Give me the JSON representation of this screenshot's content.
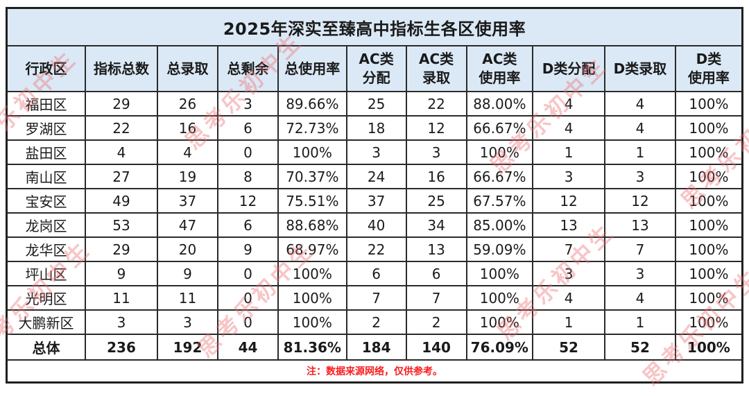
{
  "chart_data": {
    "type": "table",
    "title": "2025年深实至臻高中指标生各区使用率",
    "columns": [
      "行政区",
      "指标总数",
      "总录取",
      "总剩余",
      "总使用率",
      "AC类\n分配",
      "AC类\n录取",
      "AC类\n使用率",
      "D类分配",
      "D类录取",
      "D类\n使用率"
    ],
    "rows": [
      [
        "福田区",
        "29",
        "26",
        "3",
        "89.66%",
        "25",
        "22",
        "88.00%",
        "4",
        "4",
        "100%"
      ],
      [
        "罗湖区",
        "22",
        "16",
        "6",
        "72.73%",
        "18",
        "12",
        "66.67%",
        "4",
        "4",
        "100%"
      ],
      [
        "盐田区",
        "4",
        "4",
        "0",
        "100%",
        "3",
        "3",
        "100%",
        "1",
        "1",
        "100%"
      ],
      [
        "南山区",
        "27",
        "19",
        "8",
        "70.37%",
        "24",
        "16",
        "66.67%",
        "3",
        "3",
        "100%"
      ],
      [
        "宝安区",
        "49",
        "37",
        "12",
        "75.51%",
        "37",
        "25",
        "67.57%",
        "12",
        "12",
        "100%"
      ],
      [
        "龙岗区",
        "53",
        "47",
        "6",
        "88.68%",
        "40",
        "34",
        "85.00%",
        "13",
        "13",
        "100%"
      ],
      [
        "龙华区",
        "29",
        "20",
        "9",
        "68.97%",
        "22",
        "13",
        "59.09%",
        "7",
        "7",
        "100%"
      ],
      [
        "坪山区",
        "9",
        "9",
        "0",
        "100%",
        "6",
        "6",
        "100%",
        "3",
        "3",
        "100%"
      ],
      [
        "光明区",
        "11",
        "11",
        "0",
        "100%",
        "7",
        "7",
        "100%",
        "4",
        "4",
        "100%"
      ],
      [
        "大鹏新区",
        "3",
        "3",
        "0",
        "100%",
        "2",
        "2",
        "100%",
        "1",
        "1",
        "100%"
      ]
    ],
    "total_row": [
      "总体",
      "236",
      "192",
      "44",
      "81.36%",
      "184",
      "140",
      "76.09%",
      "52",
      "52",
      "100%"
    ],
    "note": "注：数据来源网络，仅供参考。",
    "layout": {
      "header_bg": "#dbe9f6",
      "border_color": "#2a2a2a",
      "note_color": "#fb1d1d",
      "watermark_color": "#ec6a6e",
      "column_widths_pct": [
        10.7,
        9.8,
        8.2,
        8.2,
        9.3,
        8.1,
        8.2,
        9.0,
        9.8,
        9.6,
        9.1
      ]
    }
  },
  "watermark": {
    "text": "思考乐初中生"
  }
}
